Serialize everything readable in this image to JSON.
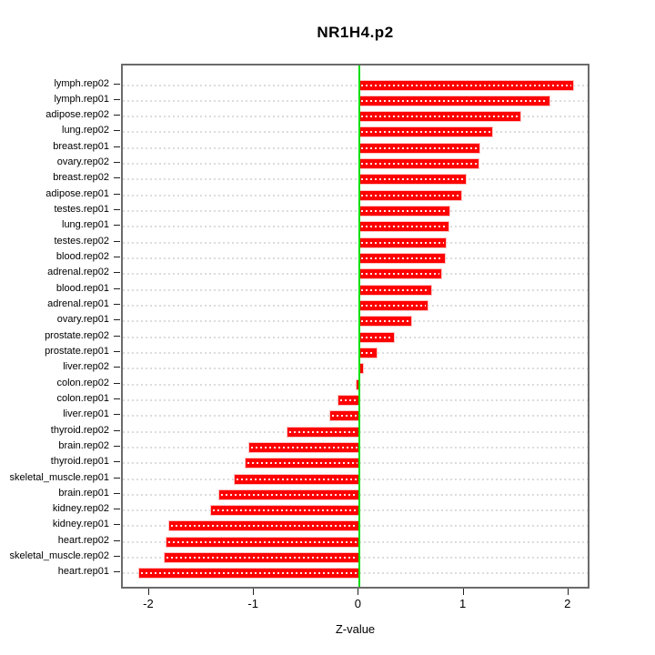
{
  "chart_data": {
    "type": "bar",
    "orientation": "horizontal",
    "title": "NR1H4.p2",
    "xlabel": "Z-value",
    "ylabel": "",
    "xlim": [
      -2.26,
      2.21
    ],
    "grid": "dotted horizontal line per category, light gray (white over bars)",
    "legend": "none",
    "zero_line": 0,
    "categories": [
      "lymph.rep02",
      "lymph.rep01",
      "adipose.rep02",
      "lung.rep02",
      "breast.rep01",
      "ovary.rep02",
      "breast.rep02",
      "adipose.rep01",
      "testes.rep01",
      "lung.rep01",
      "testes.rep02",
      "blood.rep02",
      "adrenal.rep02",
      "blood.rep01",
      "adrenal.rep01",
      "ovary.rep01",
      "prostate.rep02",
      "prostate.rep01",
      "liver.rep02",
      "colon.rep02",
      "colon.rep01",
      "liver.rep01",
      "thyroid.rep02",
      "brain.rep02",
      "thyroid.rep01",
      "skeletal_muscle.rep01",
      "brain.rep01",
      "kidney.rep02",
      "kidney.rep01",
      "heart.rep02",
      "skeletal_muscle.rep02",
      "heart.rep01"
    ],
    "values": [
      2.04,
      1.81,
      1.53,
      1.26,
      1.14,
      1.13,
      1.01,
      0.97,
      0.86,
      0.85,
      0.82,
      0.81,
      0.78,
      0.68,
      0.65,
      0.49,
      0.33,
      0.16,
      0.03,
      -0.03,
      -0.2,
      -0.28,
      -0.69,
      -1.05,
      -1.09,
      -1.19,
      -1.34,
      -1.42,
      -1.82,
      -1.84,
      -1.86,
      -2.1
    ],
    "x_tick_values": [
      -2,
      -1,
      0,
      1,
      2
    ],
    "x_tick_labels": [
      "-2",
      "-1",
      "0",
      "1",
      "2"
    ]
  },
  "colors": {
    "bar": "#ff0000",
    "bar_edge": "#ffc2c2",
    "bar_dash": "#ffffff",
    "zero_line": "#00dd00",
    "gridline": "#dcdcdc",
    "box_border": "#6b6b6b",
    "background": "#ffffff",
    "text": "#000000"
  }
}
